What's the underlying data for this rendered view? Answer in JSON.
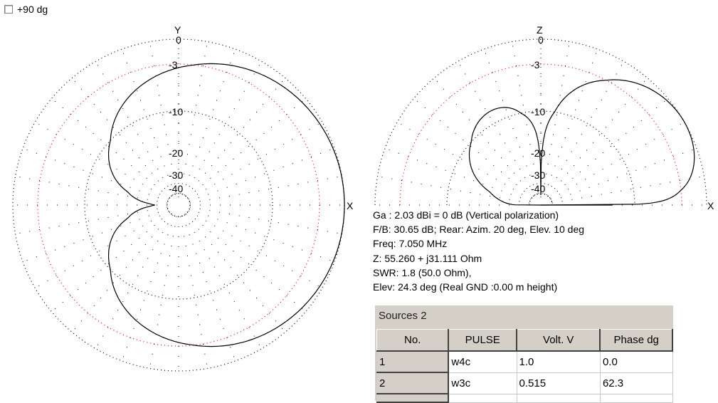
{
  "option": {
    "label": "+90 dg",
    "checked": false
  },
  "azimuth_plot": {
    "axis_top": "Y",
    "axis_right": "X",
    "ring_labels": [
      "0",
      "-3",
      "-10",
      "-20",
      "-30",
      "-40"
    ]
  },
  "elevation_plot": {
    "axis_top": "Z",
    "axis_right": "X",
    "ring_labels": [
      "0",
      "-3",
      "-10",
      "-20",
      "-30",
      "-40"
    ]
  },
  "colors": {
    "pattern": "#000000",
    "grid": "#000000",
    "grid_accent": "#ff0000",
    "panel": "#d4d0c8"
  },
  "info": {
    "lines": [
      "Ga : 2.03 dBi = 0 dB  (Vertical polarization)",
      "F/B: 30.65 dB; Rear: Azim. 20 deg,  Elev. 10 deg",
      "Freq: 7.050 MHz",
      "Z: 55.260 + j31.111 Ohm",
      "SWR: 1.8 (50.0 Ohm),",
      "Elev: 24.3 deg (Real GND  :0.00 m height)"
    ]
  },
  "sources": {
    "title": "Sources 2",
    "columns": [
      "No.",
      "PULSE",
      "Volt. V",
      "Phase dg"
    ],
    "rows": [
      [
        "1",
        "w4c",
        "1.0",
        "0.0"
      ],
      [
        "2",
        "w3c",
        "0.515",
        "62.3"
      ]
    ]
  }
}
